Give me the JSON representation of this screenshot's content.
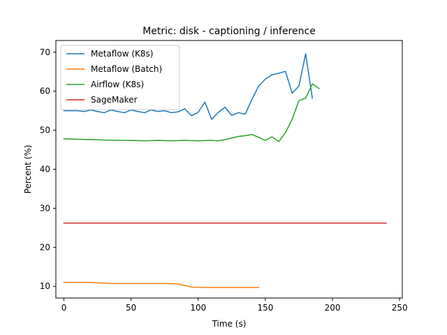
{
  "chart_data": {
    "type": "line",
    "title": "Metric: disk - captioning / inference",
    "xlabel": "Time (s)",
    "ylabel": "Percent (%)",
    "xlim": [
      -6,
      252
    ],
    "ylim": [
      7,
      73
    ],
    "xticks": [
      0,
      50,
      100,
      150,
      200,
      250
    ],
    "yticks": [
      10,
      20,
      30,
      40,
      50,
      60,
      70
    ],
    "grid": false,
    "legend_position": "upper-left",
    "series": [
      {
        "name": "Metaflow (K8s)",
        "color": "#1f77b4",
        "x": [
          0,
          5,
          10,
          15,
          20,
          25,
          30,
          35,
          40,
          45,
          50,
          55,
          60,
          65,
          70,
          75,
          80,
          85,
          90,
          95,
          100,
          105,
          110,
          115,
          120,
          125,
          130,
          135,
          140,
          145,
          150,
          155,
          160,
          165,
          170,
          175,
          180,
          185
        ],
        "y": [
          55.0,
          55.0,
          55.0,
          54.8,
          55.2,
          54.8,
          54.5,
          55.2,
          54.8,
          54.5,
          55.2,
          54.8,
          54.5,
          55.2,
          54.8,
          55.0,
          54.5,
          54.7,
          55.5,
          53.7,
          54.6,
          57.2,
          52.8,
          54.6,
          55.9,
          53.8,
          54.5,
          54.1,
          57.9,
          61.3,
          63.1,
          64.2,
          64.6,
          65.1,
          59.5,
          61.3,
          69.6,
          58.2
        ]
      },
      {
        "name": "Metaflow (Batch)",
        "color": "#ff7f0e",
        "x": [
          0,
          10,
          20,
          30,
          35,
          45,
          55,
          65,
          75,
          85,
          95,
          105,
          115,
          125,
          135,
          145
        ],
        "y": [
          11.0,
          11.0,
          11.0,
          10.8,
          10.7,
          10.7,
          10.7,
          10.7,
          10.7,
          10.6,
          9.8,
          9.7,
          9.7,
          9.7,
          9.7,
          9.7
        ]
      },
      {
        "name": "Airflow (K8s)",
        "color": "#2ca02c",
        "x": [
          0,
          10,
          20,
          30,
          40,
          50,
          60,
          70,
          80,
          90,
          100,
          110,
          115,
          120,
          125,
          130,
          135,
          140,
          145,
          150,
          155,
          160,
          165,
          170,
          175,
          180,
          185,
          190
        ],
        "y": [
          47.8,
          47.7,
          47.6,
          47.5,
          47.4,
          47.4,
          47.3,
          47.4,
          47.3,
          47.4,
          47.3,
          47.4,
          47.3,
          47.6,
          48.0,
          48.4,
          48.6,
          48.9,
          48.2,
          47.4,
          48.3,
          47.1,
          49.4,
          52.8,
          57.6,
          58.2,
          61.9,
          60.7
        ]
      },
      {
        "name": "SageMaker",
        "color": "#d62728",
        "x": [
          0,
          240
        ],
        "y": [
          26.2,
          26.2
        ]
      }
    ]
  }
}
